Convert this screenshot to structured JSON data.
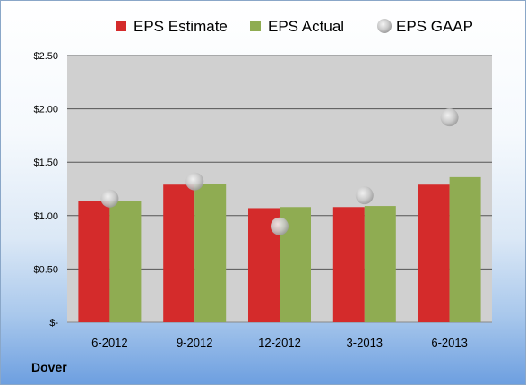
{
  "company": "Dover",
  "chart_data": {
    "type": "bar",
    "categories": [
      "6-2012",
      "9-2012",
      "12-2012",
      "3-2013",
      "6-2013"
    ],
    "series": [
      {
        "name": "EPS Estimate",
        "type": "bar",
        "color": "#d42b2b",
        "values": [
          1.14,
          1.29,
          1.07,
          1.08,
          1.29
        ]
      },
      {
        "name": "EPS Actual",
        "type": "bar",
        "color": "#8fac52",
        "values": [
          1.14,
          1.3,
          1.08,
          1.09,
          1.36
        ]
      },
      {
        "name": "EPS GAAP",
        "type": "scatter",
        "color": "#c4c4c4",
        "values": [
          1.16,
          1.32,
          0.9,
          1.19,
          1.92
        ]
      }
    ],
    "ylim": [
      0,
      2.5
    ],
    "yticks": [
      {
        "value": 0,
        "label": "$-"
      },
      {
        "value": 0.5,
        "label": "$0.50"
      },
      {
        "value": 1.0,
        "label": "$1.00"
      },
      {
        "value": 1.5,
        "label": "$1.50"
      },
      {
        "value": 2.0,
        "label": "$2.00"
      },
      {
        "value": 2.5,
        "label": "$2.50"
      }
    ],
    "grid": true,
    "legend_position": "top",
    "plot_background": "#d0d0d0"
  }
}
